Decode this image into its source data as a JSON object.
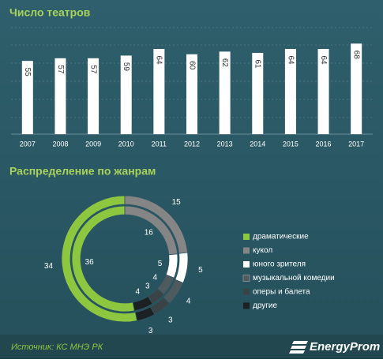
{
  "chart_data": [
    {
      "type": "bar",
      "title": "Число театров",
      "categories": [
        "2007",
        "2008",
        "2009",
        "2010",
        "2011",
        "2012",
        "2013",
        "2014",
        "2015",
        "2016",
        "2017"
      ],
      "values": [
        55,
        57,
        57,
        59,
        64,
        60,
        62,
        61,
        64,
        64,
        68
      ],
      "color": "#ffffff",
      "ylim": [
        0,
        80
      ]
    },
    {
      "type": "donut",
      "title": "Распределение по жанрам",
      "categories": [
        "драматические",
        "кукол",
        "юного зрителя",
        "музыкальной комедии",
        "оперы и балета",
        "другие"
      ],
      "colors": [
        "#8dc63f",
        "#858585",
        "#ffffff",
        "#4f5a5e",
        "#3a4346",
        "#1c2224"
      ],
      "series": [
        {
          "values": [
            34,
            15,
            5,
            4,
            3,
            3
          ]
        },
        {
          "values": [
            36,
            16,
            5,
            4,
            3,
            4
          ]
        }
      ]
    }
  ],
  "footer": {
    "source": "Источник: КС МНЭ РК",
    "logo": "EnergyProm"
  }
}
